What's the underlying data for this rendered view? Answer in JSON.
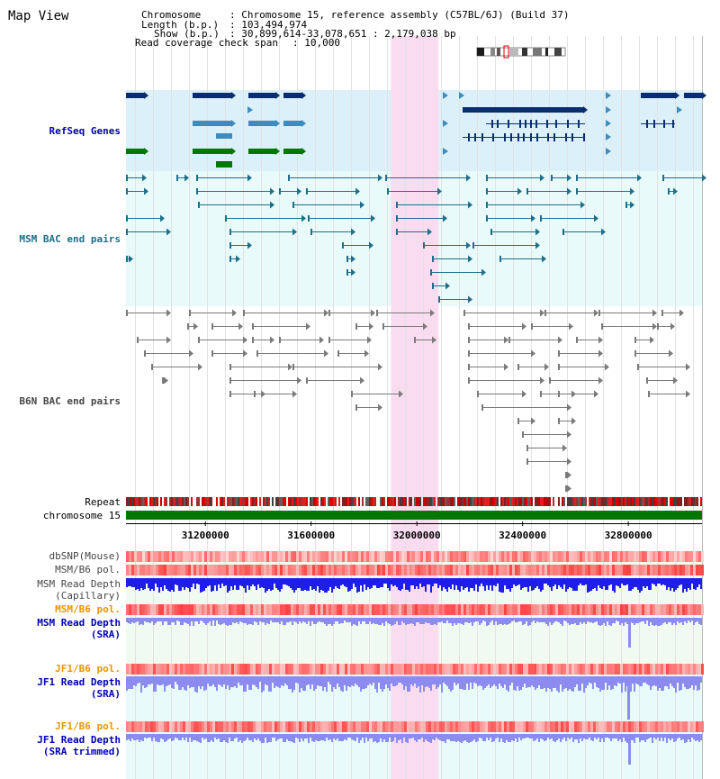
{
  "view_title": "Map View",
  "header": {
    "chromosome_key": "Chromosome",
    "chromosome_value": ": Chromosome 15, reference assembly (C57BL/6J) (Build 37)",
    "length_key": "Length (b.p.)",
    "length_value": ": 103,494,974",
    "show_key": "Show (b.p.)",
    "show_value": ": 30,899,614-33,078,651 : 2,179,038 bp",
    "coverage_key": "Read coverage check span",
    "coverage_value": ": 10,000"
  },
  "tracks": {
    "refseq": "RefSeq Genes",
    "msm_bac": "MSM BAC end pairs",
    "b6n_bac": "B6N BAC end pairs",
    "repeat": "Repeat",
    "chromosome": "chromosome 15",
    "dbsnp": "dbSNP(Mouse)",
    "msm_b6_pol": "MSM/B6 pol.",
    "msm_depth_cap_1": "MSM Read Depth",
    "msm_depth_cap_2": "(Capillary)",
    "msm_b6_pol_2": "MSM/B6 pol.",
    "msm_depth_sra_1": "MSM Read Depth",
    "msm_depth_sra_2": "(SRA)",
    "jf1_b6_pol": "JF1/B6 pol.",
    "jf1_depth_sra_1": "JF1 Read Depth",
    "jf1_depth_sra_2": "(SRA)",
    "jf1_b6_pol_2": "JF1/B6 pol.",
    "jf1_depth_trim_1": "JF1 Read Depth",
    "jf1_depth_trim_2": "(SRA trimmed)"
  },
  "axis": {
    "ticks": [
      {
        "pos": 31200000,
        "label": "31200000"
      },
      {
        "pos": 31600000,
        "label": "31600000"
      },
      {
        "pos": 32000000,
        "label": "32000000"
      },
      {
        "pos": 32400000,
        "label": "32400000"
      },
      {
        "pos": 32800000,
        "label": "32800000"
      }
    ],
    "range_start": 30899614,
    "range_end": 33078651,
    "highlight_start": 31902000,
    "highlight_end": 32082000
  },
  "colors": {
    "refseq_bg": "#dcf0fa",
    "bac_bg": "#e8fafa",
    "highlight": "#fadcf0",
    "gene_dark": "#0a2d6e",
    "gene_mid": "#3c8cbe",
    "gene_green": "#007800",
    "msm_bac": "#1e6e8c",
    "b6n_bac": "#7a7a7a",
    "chromosome": "#007800",
    "depth_blue": "#1e1ee6",
    "depth_light": "#8c8cf0",
    "pol_label": "#e69600",
    "blue_label": "#0000b4",
    "gray_label": "#464646"
  }
}
